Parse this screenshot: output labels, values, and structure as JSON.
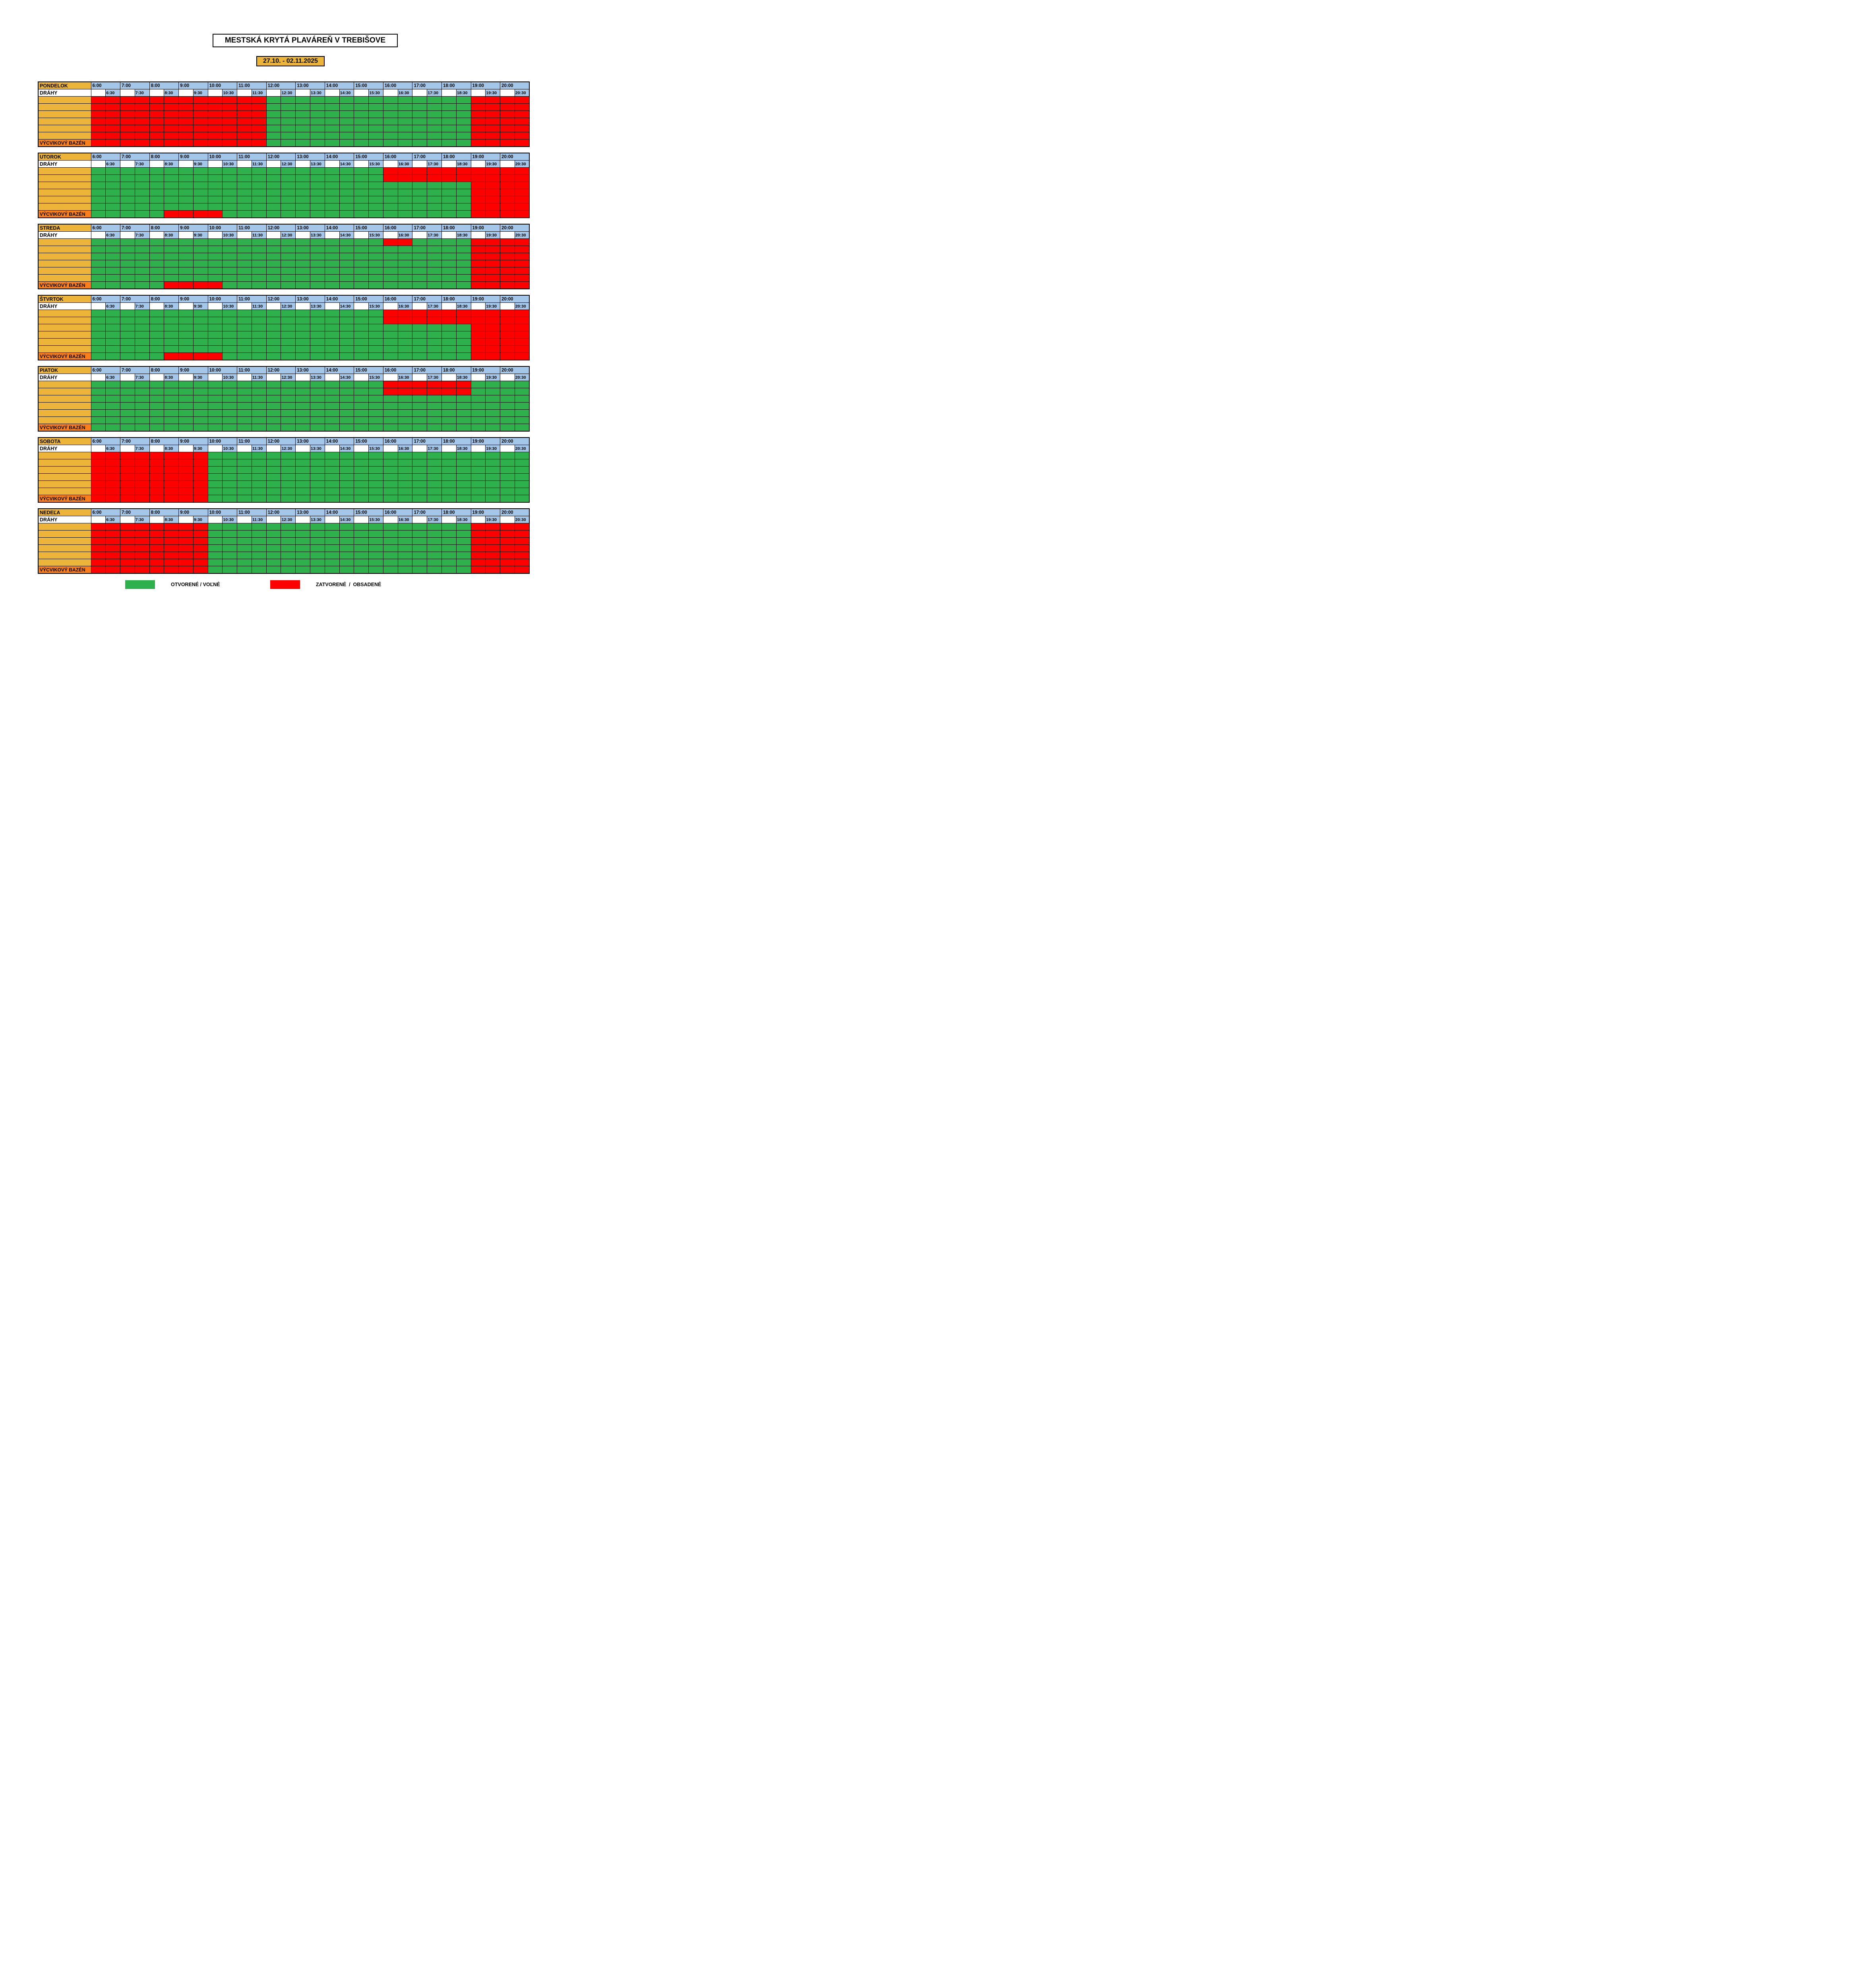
{
  "title": "MESTSKÁ KRYTÁ PLAVÁREŇ V TREBIŠOVE",
  "date_range": "27.10. - 02.11.2025",
  "row_labels": {
    "lanes": "DRÁHY",
    "training": "VÝCVIKOVÝ BAZÉN"
  },
  "time_header": {
    "hours": [
      "6:00",
      "7:00",
      "8:00",
      "9:00",
      "10:00",
      "11:00",
      "12:00",
      "13:00",
      "14:00",
      "15:00",
      "16:00",
      "17:00",
      "18:00",
      "19:00",
      "20:00"
    ],
    "half_hours": [
      "6:30",
      "7:30",
      "8:30",
      "9:30",
      "10:30",
      "11:30",
      "12:30",
      "13:30",
      "14:30",
      "15:30",
      "16:30",
      "17:30",
      "18:30",
      "19:30",
      "20:30"
    ]
  },
  "slot_states_key": {
    "G": "open",
    "R": "closed"
  },
  "colors": {
    "open": "#2EB14D",
    "closed": "#FE0000",
    "blue": "#A4C7E9",
    "yellow": "#ECB53A",
    "orange": "#F97F1E"
  },
  "days": [
    {
      "name": "PONDELOK",
      "rows": [
        "RRRRRRRRRRRRGGGGGGGGGGGGGGRRRR",
        "RRRRRRRRRRRRGGGGGGGGGGGGGGRRRR",
        "RRRRRRRRRRRRGGGGGGGGGGGGGGRRRR",
        "RRRRRRRRRRRRGGGGGGGGGGGGGGRRRR",
        "RRRRRRRRRRRRGGGGGGGGGGGGGGRRRR",
        "RRRRRRRRRRRRGGGGGGGGGGGGGGRRRR",
        "RRRRRRRRRRRRGGGGGGGGGGGGGGRRRR"
      ]
    },
    {
      "name": "UTOROK",
      "rows": [
        "GGGGGGGGGGGGGGGGGGGGRRRRRRRRRR",
        "GGGGGGGGGGGGGGGGGGGGRRRRRRRRRR",
        "GGGGGGGGGGGGGGGGGGGGGGGGGGRRRR",
        "GGGGGGGGGGGGGGGGGGGGGGGGGGRRRR",
        "GGGGGGGGGGGGGGGGGGGGGGGGGGRRRR",
        "GGGGGGGGGGGGGGGGGGGGGGGGGGRRRR",
        "GGGGGRRRRGGGGGGGGGGGGGGGGGRRRR"
      ]
    },
    {
      "name": "STREDA",
      "rows": [
        "GGGGGGGGGGGGGGGGGGGGRRGGGGRRRR",
        "GGGGGGGGGGGGGGGGGGGGGGGGGGRRRR",
        "GGGGGGGGGGGGGGGGGGGGGGGGGGRRRR",
        "GGGGGGGGGGGGGGGGGGGGGGGGGGRRRR",
        "GGGGGGGGGGGGGGGGGGGGGGGGGGRRRR",
        "GGGGGGGGGGGGGGGGGGGGGGGGGGRRRR",
        "GGGGGRRRRGGGGGGGGGGGGGGGGGRRRR"
      ]
    },
    {
      "name": "ŠTVRTOK",
      "rows": [
        "GGGGGGGGGGGGGGGGGGGGRRRRRRRRRR",
        "GGGGGGGGGGGGGGGGGGGGRRRRRRRRRR",
        "GGGGGGGGGGGGGGGGGGGGGGGGGGRRRR",
        "GGGGGGGGGGGGGGGGGGGGGGGGGGRRRR",
        "GGGGGGGGGGGGGGGGGGGGGGGGGGRRRR",
        "GGGGGGGGGGGGGGGGGGGGGGGGGGRRRR",
        "GGGGGRRRRGGGGGGGGGGGGGGGGGRRRR"
      ]
    },
    {
      "name": "PIATOK",
      "rows": [
        "GGGGGGGGGGGGGGGGGGGGRRRRRRGGGG",
        "GGGGGGGGGGGGGGGGGGGGRRRRRRGGGG",
        "GGGGGGGGGGGGGGGGGGGGGGGGGGGGGG",
        "GGGGGGGGGGGGGGGGGGGGGGGGGGGGGG",
        "GGGGGGGGGGGGGGGGGGGGGGGGGGGGGG",
        "GGGGGGGGGGGGGGGGGGGGGGGGGGGGGG",
        "GGGGGGGGGGGGGGGGGGGGGGGGGGGGGG"
      ]
    },
    {
      "name": "SOBOTA",
      "rows": [
        "RRRRRRRRGGGGGGGGGGGGGGGGGGGGGG",
        "RRRRRRRRGGGGGGGGGGGGGGGGGGGGGG",
        "RRRRRRRRGGGGGGGGGGGGGGGGGGGGGG",
        "RRRRRRRRGGGGGGGGGGGGGGGGGGGGGG",
        "RRRRRRRRGGGGGGGGGGGGGGGGGGGGGG",
        "RRRRRRRRGGGGGGGGGGGGGGGGGGGGGG",
        "RRRRRRRRGGGGGGGGGGGGGGGGGGGGGG"
      ]
    },
    {
      "name": "NEDEĽA",
      "rows": [
        "RRRRRRRRGGGGGGGGGGGGGGGGGGRRRR",
        "RRRRRRRRGGGGGGGGGGGGGGGGGGRRRR",
        "RRRRRRRRGGGGGGGGGGGGGGGGGGRRRR",
        "RRRRRRRRGGGGGGGGGGGGGGGGGGRRRR",
        "RRRRRRRRGGGGGGGGGGGGGGGGGGRRRR",
        "RRRRRRRRGGGGGGGGGGGGGGGGGGRRRR",
        "RRRRRRRRGGGGGGGGGGGGGGGGGGRRRR"
      ]
    }
  ],
  "legend": {
    "open_label": "OTVORENÉ / VOĽNÉ",
    "closed_label": "ZATVORENÉ  /  OBSADENÉ"
  }
}
